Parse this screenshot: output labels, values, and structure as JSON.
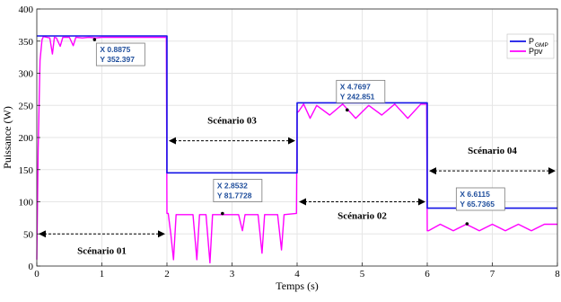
{
  "chart_data": {
    "type": "line",
    "xlabel": "Temps (s)",
    "ylabel": "Puissance (W)",
    "xlim": [
      0,
      8
    ],
    "ylim": [
      0,
      400
    ],
    "xticks": [
      0,
      1,
      2,
      3,
      4,
      5,
      6,
      7,
      8
    ],
    "yticks": [
      0,
      50,
      100,
      150,
      200,
      250,
      300,
      350,
      400
    ],
    "grid": true,
    "legend_position": "top-right",
    "series": [
      {
        "name": "P",
        "name_subscript": "GMP",
        "color": "#1414e6",
        "x": [
          0,
          2,
          2,
          4,
          4,
          6,
          6,
          8
        ],
        "y": [
          358,
          358,
          145,
          145,
          254,
          254,
          90,
          90
        ]
      },
      {
        "name": "Ppv",
        "color": "#ff00ff",
        "x": [
          0.0,
          0.02,
          0.05,
          0.08,
          0.1,
          0.2,
          0.24,
          0.27,
          0.3,
          0.36,
          0.4,
          0.5,
          0.56,
          0.6,
          0.7,
          0.8,
          0.9,
          1.0,
          1.2,
          1.4,
          1.6,
          1.8,
          1.99,
          2.0,
          2.02,
          2.06,
          2.1,
          2.14,
          2.2,
          2.3,
          2.4,
          2.46,
          2.5,
          2.6,
          2.66,
          2.7,
          2.8,
          3.0,
          3.1,
          3.16,
          3.2,
          3.4,
          3.46,
          3.5,
          3.6,
          3.7,
          3.76,
          3.8,
          3.99,
          4.0,
          4.02,
          4.1,
          4.2,
          4.3,
          4.5,
          4.7,
          4.9,
          5.1,
          5.3,
          5.5,
          5.7,
          5.9,
          5.99,
          6.0,
          6.02,
          6.2,
          6.4,
          6.6,
          6.8,
          7.0,
          7.2,
          7.4,
          7.6,
          7.8,
          8.0
        ],
        "y": [
          10,
          180,
          320,
          352,
          357,
          355,
          330,
          356,
          355,
          342,
          356,
          356,
          343,
          356,
          355,
          356,
          355,
          356,
          356,
          356,
          356,
          356,
          356,
          82,
          82,
          50,
          10,
          80,
          80,
          80,
          80,
          10,
          80,
          80,
          5,
          80,
          80,
          80,
          80,
          55,
          80,
          80,
          20,
          80,
          80,
          80,
          25,
          80,
          82,
          240,
          240,
          252,
          230,
          250,
          235,
          252,
          230,
          250,
          235,
          252,
          230,
          252,
          252,
          55,
          55,
          65,
          55,
          65,
          55,
          65,
          55,
          65,
          55,
          65,
          65
        ]
      }
    ],
    "datatips": [
      {
        "x_label": "X 0.8875",
        "y_label": "Y 352.397",
        "x": 0.8875,
        "y": 352.397
      },
      {
        "x_label": "X 2.8532",
        "y_label": "Y 81.7728",
        "x": 2.8532,
        "y": 81.7728
      },
      {
        "x_label": "X 4.7697",
        "y_label": "Y 242.851",
        "x": 4.7697,
        "y": 242.851
      },
      {
        "x_label": "X 6.6115",
        "y_label": "Y 65.7365",
        "x": 6.6115,
        "y": 65.7365
      }
    ],
    "annotations": [
      {
        "text": "Scénario 01",
        "x1": 0,
        "x2": 2,
        "y": 50
      },
      {
        "text": "Scénario 03",
        "x1": 2,
        "x2": 4,
        "y": 195
      },
      {
        "text": "Scénario 02",
        "x1": 4,
        "x2": 6,
        "y": 100
      },
      {
        "text": "Scénario 04",
        "x1": 6,
        "x2": 8,
        "y": 148
      }
    ]
  },
  "colors": {
    "grid": "#e6e6e6",
    "axis": "#262626",
    "datatip_border": "#7a7a7a",
    "datatip_text": "#1f4e9c"
  }
}
